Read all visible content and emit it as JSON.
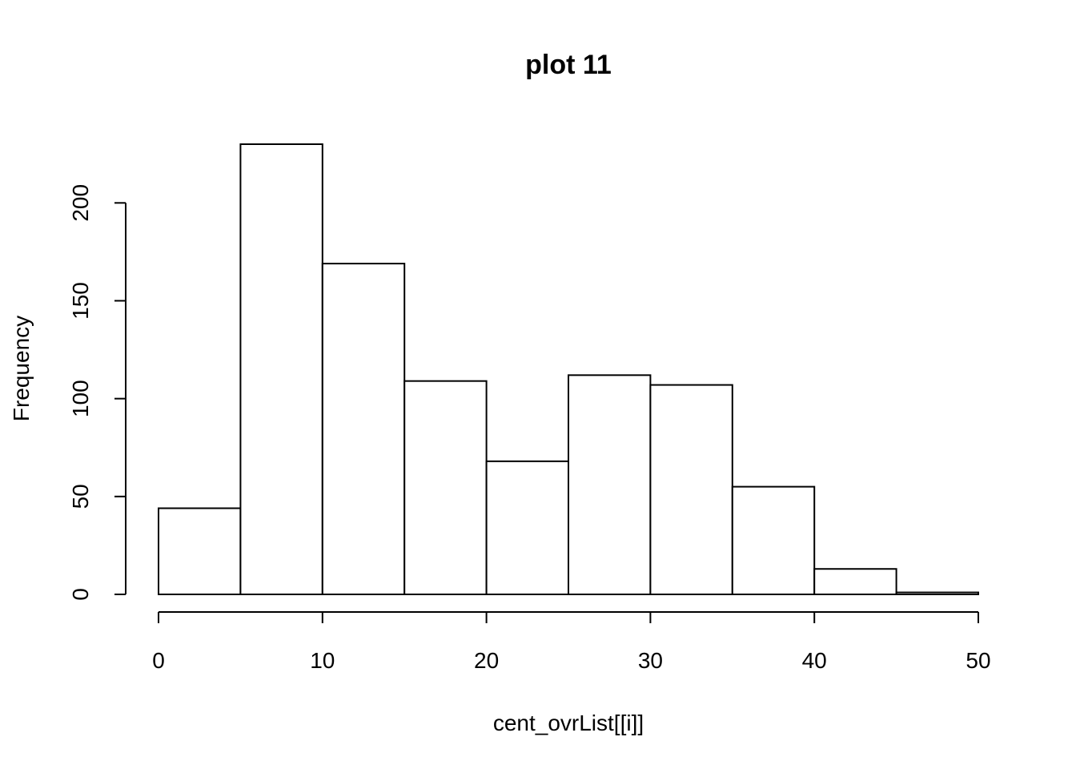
{
  "chart_data": {
    "type": "histogram",
    "title": "plot 11",
    "xlabel": "cent_ovrList[[i]]",
    "ylabel": "Frequency",
    "bins": [
      0,
      5,
      10,
      15,
      20,
      25,
      30,
      35,
      40,
      45,
      50
    ],
    "values": [
      44,
      230,
      169,
      109,
      68,
      112,
      107,
      55,
      13,
      1
    ],
    "color": "#ffffff",
    "xlim": [
      0,
      50
    ],
    "xticks": [
      0,
      10,
      20,
      30,
      40,
      50
    ],
    "ylim": [
      0,
      230
    ],
    "yticks": [
      0,
      50,
      100,
      150,
      200
    ]
  }
}
